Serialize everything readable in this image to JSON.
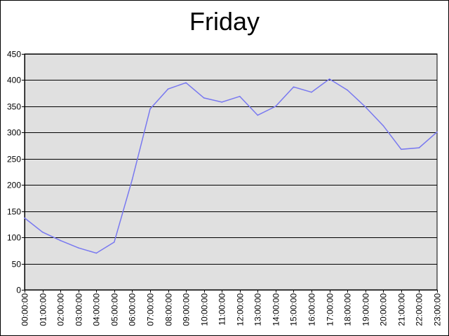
{
  "chart_data": {
    "type": "line",
    "title": "Friday",
    "xlabel": "",
    "ylabel": "",
    "ylim": [
      0,
      450
    ],
    "yticks": [
      0,
      50,
      100,
      150,
      200,
      250,
      300,
      350,
      400,
      450
    ],
    "grid": true,
    "legend": "none",
    "categories": [
      "00:00:00",
      "01:00:00",
      "02:00:00",
      "03:00:00",
      "04:00:00",
      "05:00:00",
      "06:00:00",
      "07:00:00",
      "08:00:00",
      "09:00:00",
      "10:00:00",
      "11:00:00",
      "12:00:00",
      "13:00:00",
      "14:00:00",
      "15:00:00",
      "16:00:00",
      "17:00:00",
      "18:00:00",
      "19:00:00",
      "20:00:00",
      "21:00:00",
      "22:00:00",
      "23:00:00"
    ],
    "series": [
      {
        "values": [
          137,
          110,
          94,
          80,
          70,
          91,
          210,
          345,
          383,
          395,
          366,
          358,
          369,
          333,
          350,
          387,
          377,
          402,
          381,
          349,
          313,
          268,
          271,
          301
        ]
      }
    ],
    "colors": {
      "line": "#7878f0",
      "plot_bg": "#e0e0e0",
      "grid": "#000000"
    }
  }
}
